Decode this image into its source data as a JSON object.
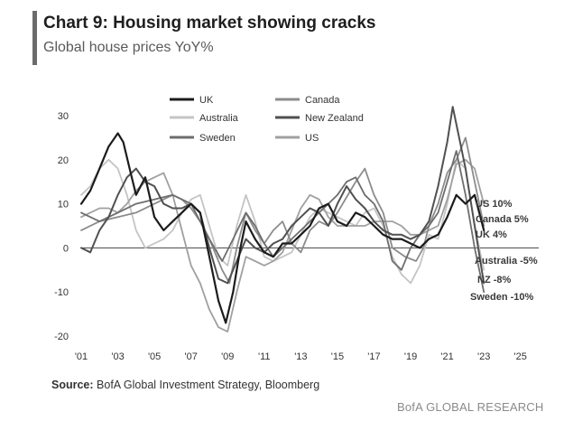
{
  "header": {
    "title": "Chart 9: Housing market showing cracks",
    "subtitle": "Global house prices YoY%"
  },
  "footer": {
    "source_label": "Source:",
    "source_text": "BofA Global Investment Strategy, Bloomberg",
    "brand": "BofA GLOBAL RESEARCH"
  },
  "chart_data": {
    "type": "line",
    "title": "Global house prices YoY%",
    "xlabel": "",
    "ylabel": "",
    "xlim": [
      2001,
      2026
    ],
    "ylim": [
      -20,
      30
    ],
    "yticks": [
      -20,
      -10,
      0,
      10,
      20,
      30
    ],
    "xticks": [
      {
        "value": 2001,
        "label": "'01"
      },
      {
        "value": 2003,
        "label": "'03"
      },
      {
        "value": 2005,
        "label": "'05"
      },
      {
        "value": 2007,
        "label": "'07"
      },
      {
        "value": 2009,
        "label": "'09"
      },
      {
        "value": 2011,
        "label": "'11"
      },
      {
        "value": 2013,
        "label": "'13"
      },
      {
        "value": 2015,
        "label": "'15"
      },
      {
        "value": 2017,
        "label": "'17"
      },
      {
        "value": 2019,
        "label": "'19"
      },
      {
        "value": 2021,
        "label": "'21"
      },
      {
        "value": 2023,
        "label": "'23"
      },
      {
        "value": 2025,
        "label": "'25"
      }
    ],
    "legend_position": "top-center",
    "series": [
      {
        "name": "UK",
        "color": "#1c1c1c",
        "width": 2.2,
        "end_label": "UK 4%",
        "points": [
          [
            2001,
            10
          ],
          [
            2001.5,
            13
          ],
          [
            2002,
            18
          ],
          [
            2002.5,
            23
          ],
          [
            2003,
            26
          ],
          [
            2003.3,
            24
          ],
          [
            2003.7,
            17
          ],
          [
            2004,
            12
          ],
          [
            2004.5,
            16
          ],
          [
            2005,
            7
          ],
          [
            2005.5,
            4
          ],
          [
            2006,
            6
          ],
          [
            2006.5,
            8
          ],
          [
            2007,
            10
          ],
          [
            2007.5,
            8
          ],
          [
            2008,
            -2
          ],
          [
            2008.5,
            -12
          ],
          [
            2008.9,
            -17
          ],
          [
            2009.3,
            -10
          ],
          [
            2009.7,
            0
          ],
          [
            2010,
            6
          ],
          [
            2010.5,
            2
          ],
          [
            2011,
            -1
          ],
          [
            2011.5,
            -2
          ],
          [
            2012,
            1
          ],
          [
            2012.5,
            1
          ],
          [
            2013,
            3
          ],
          [
            2013.5,
            5
          ],
          [
            2014,
            9
          ],
          [
            2014.5,
            10
          ],
          [
            2015,
            6
          ],
          [
            2015.5,
            5
          ],
          [
            2016,
            8
          ],
          [
            2016.5,
            7
          ],
          [
            2017,
            5
          ],
          [
            2017.5,
            3
          ],
          [
            2018,
            2
          ],
          [
            2018.5,
            2
          ],
          [
            2019,
            1
          ],
          [
            2019.5,
            0
          ],
          [
            2020,
            2
          ],
          [
            2020.5,
            3
          ],
          [
            2021,
            7
          ],
          [
            2021.5,
            12
          ],
          [
            2022,
            10
          ],
          [
            2022.5,
            12
          ],
          [
            2023,
            4
          ]
        ]
      },
      {
        "name": "Canada",
        "color": "#8c8c8c",
        "width": 1.8,
        "end_label": "Canada 5%",
        "points": [
          [
            2001,
            4
          ],
          [
            2002,
            6
          ],
          [
            2003,
            7
          ],
          [
            2004,
            8
          ],
          [
            2005,
            10
          ],
          [
            2006,
            12
          ],
          [
            2006.5,
            11
          ],
          [
            2007,
            9
          ],
          [
            2007.5,
            6
          ],
          [
            2008,
            2
          ],
          [
            2008.7,
            -5
          ],
          [
            2009.1,
            -8
          ],
          [
            2009.5,
            0
          ],
          [
            2010,
            8
          ],
          [
            2010.5,
            4
          ],
          [
            2011,
            1
          ],
          [
            2011.5,
            4
          ],
          [
            2012,
            6
          ],
          [
            2012.5,
            1
          ],
          [
            2013,
            -1
          ],
          [
            2013.5,
            4
          ],
          [
            2014,
            6
          ],
          [
            2014.5,
            5
          ],
          [
            2015,
            8
          ],
          [
            2016,
            15
          ],
          [
            2016.5,
            18
          ],
          [
            2017,
            12
          ],
          [
            2017.5,
            8
          ],
          [
            2018,
            0
          ],
          [
            2018.7,
            -2
          ],
          [
            2019.3,
            -3
          ],
          [
            2019.7,
            0
          ],
          [
            2020,
            5
          ],
          [
            2020.5,
            10
          ],
          [
            2021,
            17
          ],
          [
            2021.5,
            20
          ],
          [
            2022,
            25
          ],
          [
            2022.5,
            15
          ],
          [
            2023,
            5
          ]
        ]
      },
      {
        "name": "Australia",
        "color": "#c4c4c4",
        "width": 1.8,
        "end_label": "Australia -5%",
        "points": [
          [
            2001,
            12
          ],
          [
            2001.5,
            14
          ],
          [
            2002,
            18
          ],
          [
            2002.5,
            20
          ],
          [
            2003,
            18
          ],
          [
            2003.5,
            12
          ],
          [
            2004,
            4
          ],
          [
            2004.5,
            0
          ],
          [
            2005,
            1
          ],
          [
            2005.5,
            2
          ],
          [
            2006,
            4
          ],
          [
            2006.5,
            8
          ],
          [
            2007,
            11
          ],
          [
            2007.5,
            12
          ],
          [
            2008,
            5
          ],
          [
            2008.5,
            -2
          ],
          [
            2009,
            -4
          ],
          [
            2009.5,
            5
          ],
          [
            2010,
            12
          ],
          [
            2010.5,
            6
          ],
          [
            2011,
            -2
          ],
          [
            2011.5,
            -3
          ],
          [
            2012,
            -2
          ],
          [
            2012.5,
            -1
          ],
          [
            2013,
            3
          ],
          [
            2013.5,
            7
          ],
          [
            2014,
            9
          ],
          [
            2014.5,
            8
          ],
          [
            2015,
            7
          ],
          [
            2015.5,
            6
          ],
          [
            2016,
            5
          ],
          [
            2016.5,
            8
          ],
          [
            2017,
            9
          ],
          [
            2017.5,
            5
          ],
          [
            2018,
            -2
          ],
          [
            2018.5,
            -6
          ],
          [
            2019,
            -8
          ],
          [
            2019.5,
            -4
          ],
          [
            2020,
            3
          ],
          [
            2020.5,
            2
          ],
          [
            2021,
            10
          ],
          [
            2021.5,
            20
          ],
          [
            2022,
            18
          ],
          [
            2022.5,
            5
          ],
          [
            2023,
            -5
          ]
        ]
      },
      {
        "name": "New Zealand",
        "color": "#505050",
        "width": 2.0,
        "end_label": "NZ -8%",
        "points": [
          [
            2001,
            0
          ],
          [
            2001.5,
            -1
          ],
          [
            2002,
            4
          ],
          [
            2002.5,
            7
          ],
          [
            2003,
            12
          ],
          [
            2003.5,
            16
          ],
          [
            2004,
            18
          ],
          [
            2004.5,
            15
          ],
          [
            2005,
            14
          ],
          [
            2005.5,
            10
          ],
          [
            2006,
            9
          ],
          [
            2006.5,
            9
          ],
          [
            2007,
            10
          ],
          [
            2007.5,
            8
          ],
          [
            2008,
            0
          ],
          [
            2008.5,
            -7
          ],
          [
            2009,
            -8
          ],
          [
            2009.5,
            -3
          ],
          [
            2010,
            2
          ],
          [
            2010.5,
            0
          ],
          [
            2011,
            -1
          ],
          [
            2011.5,
            1
          ],
          [
            2012,
            2
          ],
          [
            2012.5,
            5
          ],
          [
            2013,
            7
          ],
          [
            2013.5,
            9
          ],
          [
            2014,
            8
          ],
          [
            2014.5,
            5
          ],
          [
            2015,
            10
          ],
          [
            2015.5,
            14
          ],
          [
            2016,
            11
          ],
          [
            2016.5,
            9
          ],
          [
            2017,
            6
          ],
          [
            2017.5,
            4
          ],
          [
            2018,
            3
          ],
          [
            2018.5,
            3
          ],
          [
            2019,
            2
          ],
          [
            2019.5,
            3
          ],
          [
            2020,
            6
          ],
          [
            2020.5,
            14
          ],
          [
            2021,
            24
          ],
          [
            2021.3,
            32
          ],
          [
            2021.6,
            26
          ],
          [
            2022,
            18
          ],
          [
            2022.5,
            5
          ],
          [
            2023,
            -8
          ]
        ]
      },
      {
        "name": "Sweden",
        "color": "#6e6e6e",
        "width": 1.8,
        "end_label": "Sweden -10%",
        "points": [
          [
            2001,
            8
          ],
          [
            2002,
            6
          ],
          [
            2003,
            8
          ],
          [
            2004,
            10
          ],
          [
            2005,
            11
          ],
          [
            2006,
            12
          ],
          [
            2007,
            10
          ],
          [
            2007.5,
            6
          ],
          [
            2008,
            2
          ],
          [
            2008.7,
            -3
          ],
          [
            2009.3,
            2
          ],
          [
            2010,
            8
          ],
          [
            2010.5,
            5
          ],
          [
            2011,
            1
          ],
          [
            2011.5,
            -2
          ],
          [
            2012,
            0
          ],
          [
            2012.5,
            2
          ],
          [
            2013,
            4
          ],
          [
            2013.5,
            6
          ],
          [
            2014,
            8
          ],
          [
            2014.5,
            10
          ],
          [
            2015,
            12
          ],
          [
            2015.5,
            15
          ],
          [
            2016,
            16
          ],
          [
            2016.5,
            12
          ],
          [
            2017,
            10
          ],
          [
            2017.5,
            6
          ],
          [
            2018,
            -3
          ],
          [
            2018.5,
            -5
          ],
          [
            2019,
            0
          ],
          [
            2019.5,
            3
          ],
          [
            2020,
            5
          ],
          [
            2020.5,
            8
          ],
          [
            2021,
            15
          ],
          [
            2021.5,
            22
          ],
          [
            2022,
            12
          ],
          [
            2022.5,
            0
          ],
          [
            2023,
            -10
          ]
        ]
      },
      {
        "name": "US",
        "color": "#a0a0a0",
        "width": 1.8,
        "end_label": "US 10%",
        "points": [
          [
            2001,
            7
          ],
          [
            2001.5,
            8
          ],
          [
            2002,
            9
          ],
          [
            2002.5,
            9
          ],
          [
            2003,
            8
          ],
          [
            2003.5,
            10
          ],
          [
            2004,
            13
          ],
          [
            2004.5,
            15
          ],
          [
            2005,
            16
          ],
          [
            2005.5,
            17
          ],
          [
            2006,
            12
          ],
          [
            2006.5,
            4
          ],
          [
            2007,
            -4
          ],
          [
            2007.5,
            -8
          ],
          [
            2008,
            -14
          ],
          [
            2008.5,
            -18
          ],
          [
            2009,
            -19
          ],
          [
            2009.5,
            -10
          ],
          [
            2010,
            -2
          ],
          [
            2010.5,
            -3
          ],
          [
            2011,
            -4
          ],
          [
            2011.5,
            -3
          ],
          [
            2012,
            -1
          ],
          [
            2012.5,
            4
          ],
          [
            2013,
            9
          ],
          [
            2013.5,
            12
          ],
          [
            2014,
            11
          ],
          [
            2014.5,
            7
          ],
          [
            2015,
            5
          ],
          [
            2015.5,
            5
          ],
          [
            2016,
            5
          ],
          [
            2016.5,
            5
          ],
          [
            2017,
            6
          ],
          [
            2017.5,
            6
          ],
          [
            2018,
            6
          ],
          [
            2018.5,
            5
          ],
          [
            2019,
            3
          ],
          [
            2019.5,
            3
          ],
          [
            2020,
            4
          ],
          [
            2020.5,
            5
          ],
          [
            2021,
            11
          ],
          [
            2021.5,
            19
          ],
          [
            2022,
            20
          ],
          [
            2022.5,
            18
          ],
          [
            2023,
            10
          ]
        ]
      }
    ]
  }
}
